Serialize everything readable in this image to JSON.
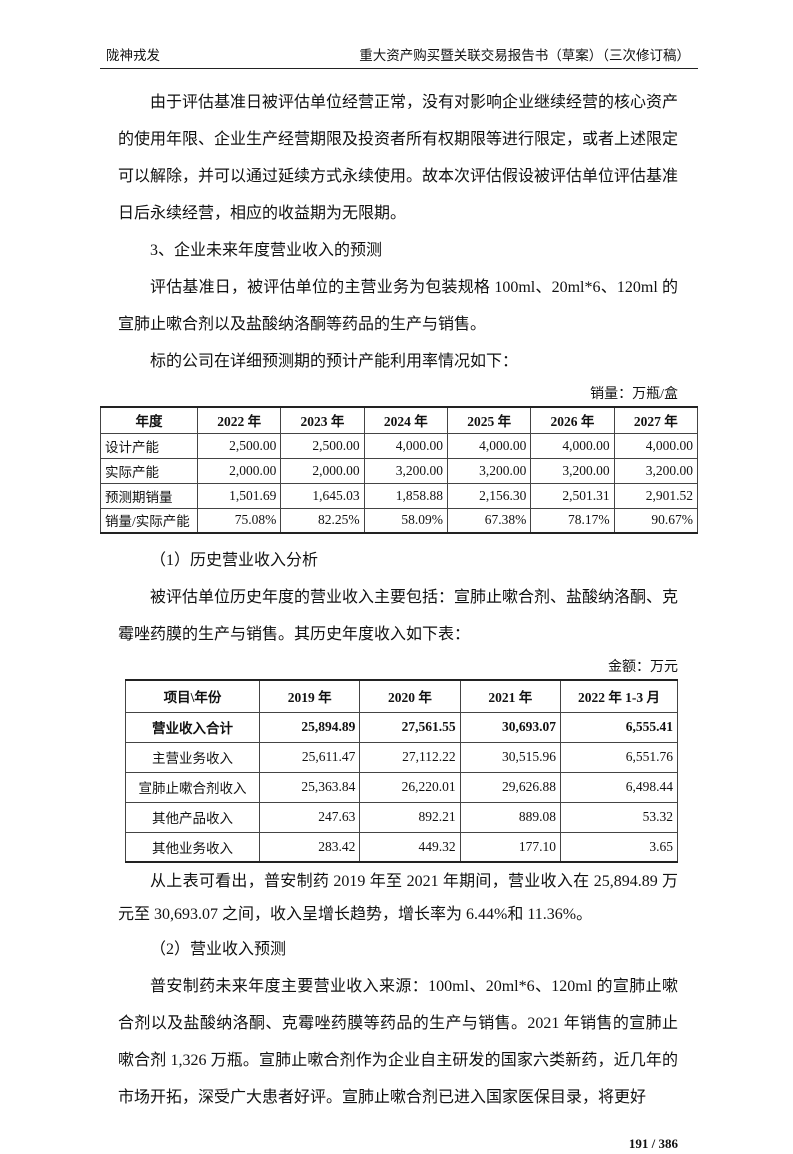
{
  "header": {
    "left": "陇神戎发",
    "right": "重大资产购买暨关联交易报告书（草案）（三次修订稿）"
  },
  "para1": "由于评估基准日被评估单位经营正常，没有对影响企业继续经营的核心资产的使用年限、企业生产经营期限及投资者所有权期限等进行限定，或者上述限定可以解除，并可以通过延续方式永续使用。故本次评估假设被评估单位评估基准日后永续经营，相应的收益期为无限期。",
  "heading3": "3、企业未来年度营业收入的预测",
  "para2": "评估基准日，被评估单位的主营业务为包装规格 100ml、20ml*6、120ml 的宣肺止嗽合剂以及盐酸纳洛酮等药品的生产与销售。",
  "para3": "标的公司在详细预测期的预计产能利用率情况如下：",
  "table1": {
    "unit": "销量：万瓶/盒",
    "headers": [
      "年度",
      "2022 年",
      "2023 年",
      "2024 年",
      "2025 年",
      "2026 年",
      "2027 年"
    ],
    "rows": [
      [
        "设计产能",
        "2,500.00",
        "2,500.00",
        "4,000.00",
        "4,000.00",
        "4,000.00",
        "4,000.00"
      ],
      [
        "实际产能",
        "2,000.00",
        "2,000.00",
        "3,200.00",
        "3,200.00",
        "3,200.00",
        "3,200.00"
      ],
      [
        "预测期销量",
        "1,501.69",
        "1,645.03",
        "1,858.88",
        "2,156.30",
        "2,501.31",
        "2,901.52"
      ],
      [
        "销量/实际产能",
        "75.08%",
        "82.25%",
        "58.09%",
        "67.38%",
        "78.17%",
        "90.67%"
      ]
    ]
  },
  "heading_hist": "（1）历史营业收入分析",
  "para4": "被评估单位历史年度的营业收入主要包括：宣肺止嗽合剂、盐酸纳洛酮、克霉唑药膜的生产与销售。其历史年度收入如下表：",
  "table2": {
    "unit": "金额：万元",
    "headers": [
      "项目\\年份",
      "2019 年",
      "2020 年",
      "2021 年",
      "2022 年 1-3 月"
    ],
    "rows": [
      [
        "营业收入合计",
        "25,894.89",
        "27,561.55",
        "30,693.07",
        "6,555.41"
      ],
      [
        "主营业务收入",
        "25,611.47",
        "27,112.22",
        "30,515.96",
        "6,551.76"
      ],
      [
        "宣肺止嗽合剂收入",
        "25,363.84",
        "26,220.01",
        "29,626.88",
        "6,498.44"
      ],
      [
        "其他产品收入",
        "247.63",
        "892.21",
        "889.08",
        "53.32"
      ],
      [
        "其他业务收入",
        "283.42",
        "449.32",
        "177.10",
        "3.65"
      ]
    ]
  },
  "para5": "从上表可看出，普安制药 2019 年至 2021 年期间，营业收入在 25,894.89 万元至 30,693.07 之间，收入呈增长趋势，增长率为 6.44%和 11.36%。",
  "heading_fore": "（2）营业收入预测",
  "para6": "普安制药未来年度主要营业收入来源：100ml、20ml*6、120ml 的宣肺止嗽合剂以及盐酸纳洛酮、克霉唑药膜等药品的生产与销售。2021 年销售的宣肺止嗽合剂 1,326 万瓶。宣肺止嗽合剂作为企业自主研发的国家六类新药，近几年的市场开拓，深受广大患者好评。宣肺止嗽合剂已进入国家医保目录，将更好",
  "page_number": "191 / 386"
}
